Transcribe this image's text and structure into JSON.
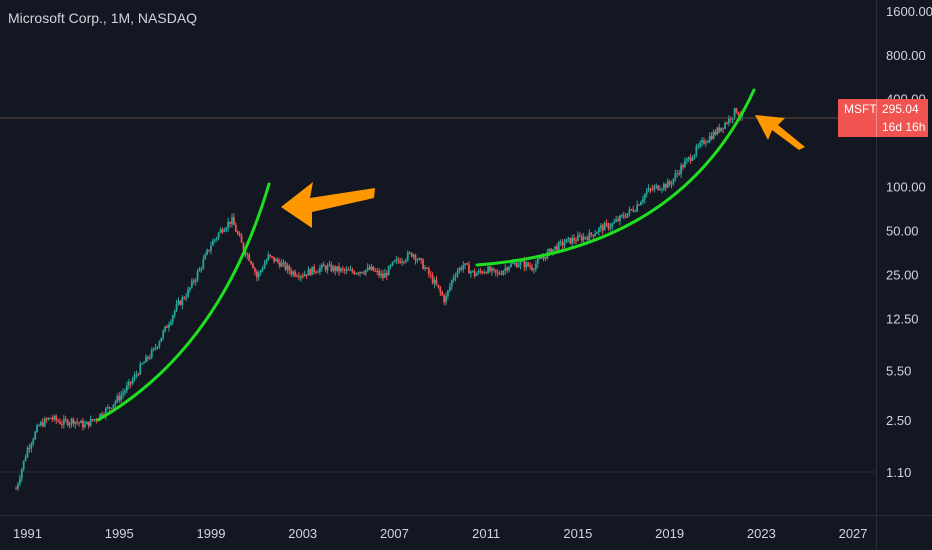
{
  "header": {
    "title": "Microsoft Corp., 1M, NASDAQ"
  },
  "price_badge": {
    "symbol": "MSFT",
    "price": "295.04",
    "countdown": "16d 16h",
    "color": "#f05350"
  },
  "colors": {
    "background": "#131722",
    "up": "#26a69a",
    "down": "#ef5350",
    "trend": "#1fe01f",
    "arrow": "#ff9800",
    "text": "#d1d4dc",
    "grid": "#2a2e39"
  },
  "chart_data": {
    "type": "candlestick",
    "title": "Microsoft Corp., 1M, NASDAQ",
    "y_scale": "log",
    "x_tick_labels": [
      "1991",
      "1995",
      "1999",
      "2003",
      "2007",
      "2011",
      "2015",
      "2019",
      "2023",
      "2027"
    ],
    "y_tick_labels": [
      "1.10",
      "2.50",
      "5.50",
      "12.50",
      "25.00",
      "50.00",
      "100.00",
      "400.00",
      "800.00",
      "1600.00"
    ],
    "y_ticks": [
      1.1,
      2.5,
      5.5,
      12.5,
      25,
      50,
      100,
      400,
      800,
      1600
    ],
    "x_range": [
      1989.8,
      2028.0
    ],
    "y_range": [
      0.56,
      1900
    ],
    "last_price": 295.04,
    "series": [
      {
        "values": [
          [
            1990.5,
            0.85
          ],
          [
            1991.0,
            1.6
          ],
          [
            1991.5,
            2.3
          ],
          [
            1992.0,
            2.6
          ],
          [
            1992.5,
            2.4
          ],
          [
            1993.0,
            2.5
          ],
          [
            1993.5,
            2.3
          ],
          [
            1994.0,
            2.6
          ],
          [
            1994.5,
            3.0
          ],
          [
            1995.0,
            3.6
          ],
          [
            1995.5,
            4.5
          ],
          [
            1996.0,
            6.0
          ],
          [
            1996.5,
            7.5
          ],
          [
            1997.0,
            10.5
          ],
          [
            1997.5,
            15.0
          ],
          [
            1998.0,
            19.0
          ],
          [
            1998.5,
            27.0
          ],
          [
            1999.0,
            40.0
          ],
          [
            1999.5,
            52.0
          ],
          [
            1999.9,
            59.0
          ],
          [
            2000.4,
            38.0
          ],
          [
            2000.8,
            30.0
          ],
          [
            2001.0,
            24.0
          ],
          [
            2001.5,
            33.0
          ],
          [
            2002.0,
            30.0
          ],
          [
            2002.5,
            26.0
          ],
          [
            2003.0,
            25.0
          ],
          [
            2003.5,
            27.0
          ],
          [
            2004.0,
            28.0
          ],
          [
            2005.0,
            26.0
          ],
          [
            2006.0,
            27.0
          ],
          [
            2006.5,
            24.0
          ],
          [
            2007.0,
            30.0
          ],
          [
            2007.8,
            35.0
          ],
          [
            2008.3,
            28.0
          ],
          [
            2008.9,
            20.0
          ],
          [
            2009.2,
            16.5
          ],
          [
            2009.6,
            25.0
          ],
          [
            2010.0,
            29.0
          ],
          [
            2010.5,
            25.0
          ],
          [
            2011.0,
            27.0
          ],
          [
            2011.5,
            25.0
          ],
          [
            2012.0,
            29.0
          ],
          [
            2012.5,
            30.0
          ],
          [
            2013.0,
            28.0
          ],
          [
            2013.5,
            33.0
          ],
          [
            2014.0,
            38.0
          ],
          [
            2014.5,
            42.0
          ],
          [
            2015.0,
            44.0
          ],
          [
            2015.5,
            46.0
          ],
          [
            2016.0,
            52.0
          ],
          [
            2016.5,
            55.0
          ],
          [
            2017.0,
            63.0
          ],
          [
            2017.5,
            72.0
          ],
          [
            2018.0,
            92.0
          ],
          [
            2018.5,
            100.0
          ],
          [
            2019.0,
            104.0
          ],
          [
            2019.5,
            135.0
          ],
          [
            2020.0,
            165.0
          ],
          [
            2020.5,
            205.0
          ],
          [
            2021.0,
            235.0
          ],
          [
            2021.5,
            280.0
          ],
          [
            2021.9,
            336.0
          ],
          [
            2022.2,
            295.04
          ]
        ]
      }
    ]
  }
}
